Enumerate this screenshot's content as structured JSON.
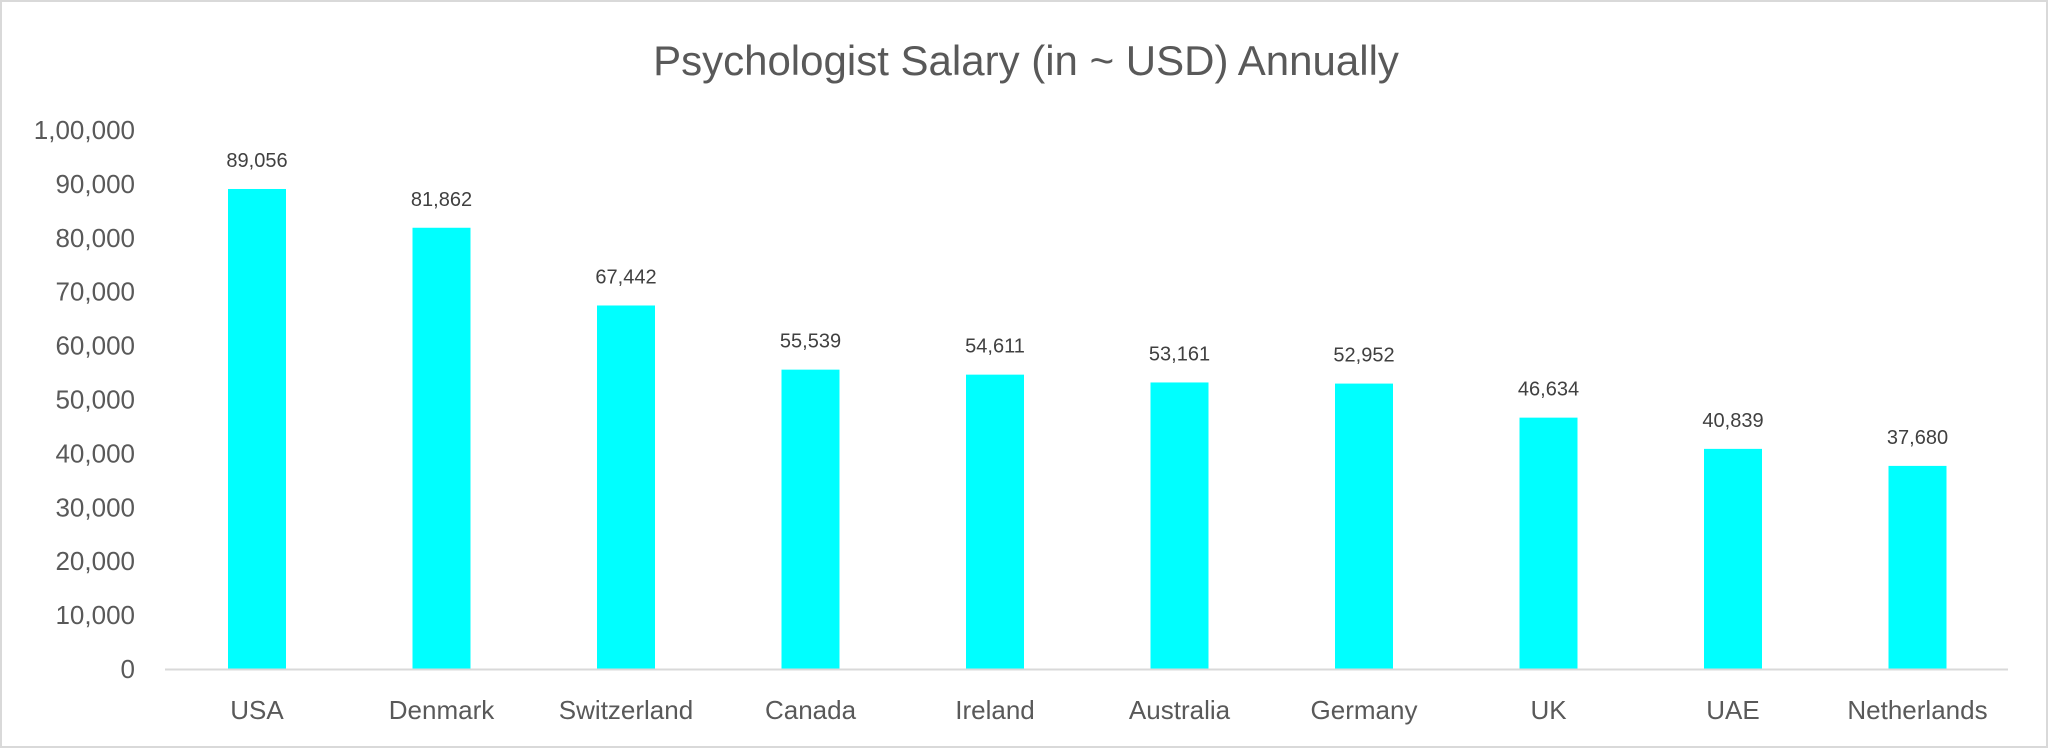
{
  "chart_data": {
    "type": "bar",
    "title": "Psychologist Salary (in ~ USD) Annually",
    "xlabel": "",
    "ylabel": "",
    "categories": [
      "USA",
      "Denmark",
      "Switzerland",
      "Canada",
      "Ireland",
      "Australia",
      "Germany",
      "UK",
      "UAE",
      "Netherlands"
    ],
    "values": [
      89056,
      81862,
      67442,
      55539,
      54611,
      53161,
      52952,
      46634,
      40839,
      37680
    ],
    "value_labels": [
      "89,056",
      "81,862",
      "67,442",
      "55,539",
      "54,611",
      "53,161",
      "52,952",
      "46,634",
      "40,839",
      "37,680"
    ],
    "ylim": [
      0,
      100000
    ],
    "yticks": [
      0,
      10000,
      20000,
      30000,
      40000,
      50000,
      60000,
      70000,
      80000,
      90000,
      100000
    ],
    "ytick_labels": [
      "0",
      "10,000",
      "20,000",
      "30,000",
      "40,000",
      "50,000",
      "60,000",
      "70,000",
      "80,000",
      "90,000",
      "1,00,000"
    ],
    "grid": false,
    "legend": "none",
    "bar_color": "#00FFFF"
  }
}
